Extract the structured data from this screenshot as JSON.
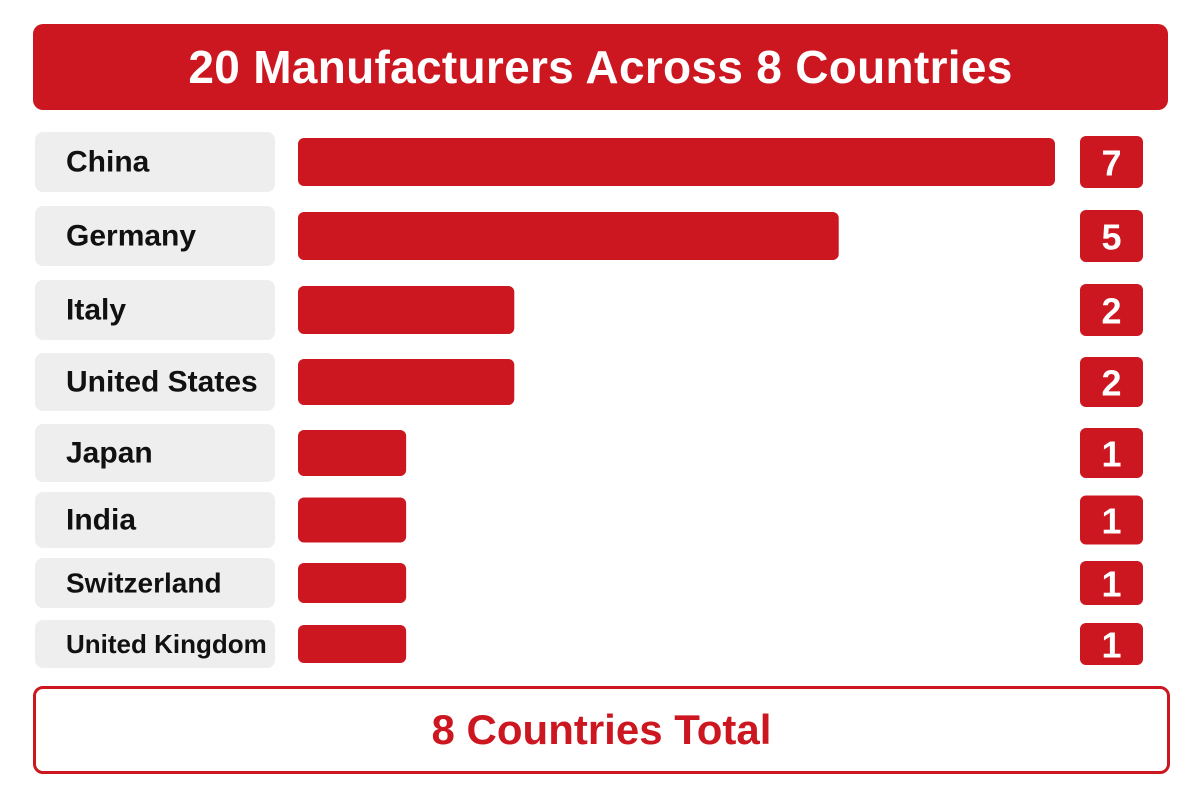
{
  "chart_data": {
    "type": "bar",
    "orientation": "horizontal",
    "title": "20 Manufacturers Across 8 Countries",
    "categories": [
      "China",
      "Germany",
      "Italy",
      "United States",
      "Japan",
      "India",
      "Switzerland",
      "United Kingdom"
    ],
    "values": [
      7,
      5,
      2,
      2,
      1,
      1,
      1,
      1
    ],
    "value_labels": [
      "7",
      "5",
      "2",
      "2",
      "1",
      "1",
      "1",
      "1"
    ],
    "xlim": [
      0,
      7
    ],
    "grid": false,
    "legend": "none",
    "footer": "8 Countries Total"
  },
  "colors": {
    "accent": "#cc1720",
    "label_background": "#eeeeee",
    "label_text": "#111111"
  }
}
